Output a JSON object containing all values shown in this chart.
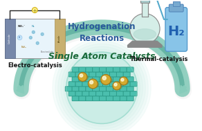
{
  "title_text": "Single Atom Catalysts",
  "center_label": "Hydrogenation\nReactions",
  "left_label": "Electro-catalysis",
  "right_label": "Thermal-catalysis",
  "h2_text": "H₂",
  "bg_color": "#ffffff",
  "arch_color": "#a8d8cc",
  "arch_shadow_color": "#d0d0d0",
  "circle_fill_color": "#c8ede5",
  "circle_edge_color": "#7fcfbe",
  "teal_color": "#4bbfae",
  "teal_dark": "#2a9a88",
  "teal_light": "#7fd8c8",
  "atom_color": "#d4aa30",
  "atom_color2": "#e8c840",
  "atom_edge_color": "#a07818",
  "title_color": "#1a6a3a",
  "center_text_color": "#2a5a9a",
  "left_label_color": "#111111",
  "right_label_color": "#111111",
  "h2_color": "#2060b0",
  "figsize": [
    2.92,
    1.89
  ],
  "dpi": 100,
  "arch_teal": "#88ccbb",
  "arch_teal_dark": "#55aa99"
}
